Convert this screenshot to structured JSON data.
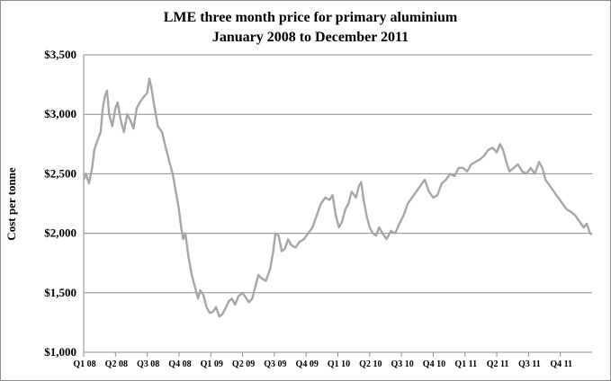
{
  "chart_data": {
    "type": "line",
    "title": "LME three month price for primary aluminium",
    "subtitle": "January 2008  to December 2011",
    "ylabel": "Cost per tonne",
    "xlabel": "",
    "ylim": [
      1000,
      3500
    ],
    "y_ticks": [
      {
        "value": 1000,
        "label": "$1,000"
      },
      {
        "value": 1500,
        "label": "$1,500"
      },
      {
        "value": 2000,
        "label": "$2,000"
      },
      {
        "value": 2500,
        "label": "$2,500"
      },
      {
        "value": 3000,
        "label": "$3,000"
      },
      {
        "value": 3500,
        "label": "$3,500"
      }
    ],
    "x_range": [
      0,
      48
    ],
    "x_ticks": [
      {
        "value": 0,
        "label": "Q1 08"
      },
      {
        "value": 3,
        "label": "Q2 08"
      },
      {
        "value": 6,
        "label": "Q3 08"
      },
      {
        "value": 9,
        "label": "Q4 08"
      },
      {
        "value": 12,
        "label": "Q1 09"
      },
      {
        "value": 15,
        "label": "Q2 09"
      },
      {
        "value": 18,
        "label": "Q3 09"
      },
      {
        "value": 21,
        "label": "Q4 09"
      },
      {
        "value": 24,
        "label": "Q1 10"
      },
      {
        "value": 27,
        "label": "Q2 10"
      },
      {
        "value": 30,
        "label": "Q3 10"
      },
      {
        "value": 33,
        "label": "Q4 10"
      },
      {
        "value": 36,
        "label": "Q1 11"
      },
      {
        "value": 39,
        "label": "Q2 11"
      },
      {
        "value": 42,
        "label": "Q3 11"
      },
      {
        "value": 45,
        "label": "Q4 11"
      }
    ],
    "grid": true,
    "line_color": "#a6a6a6",
    "series": [
      {
        "name": "LME three month price",
        "points": [
          [
            0.0,
            2450
          ],
          [
            0.2,
            2500
          ],
          [
            0.5,
            2420
          ],
          [
            0.8,
            2550
          ],
          [
            1.0,
            2700
          ],
          [
            1.3,
            2780
          ],
          [
            1.6,
            2850
          ],
          [
            1.8,
            3050
          ],
          [
            2.0,
            3150
          ],
          [
            2.2,
            3200
          ],
          [
            2.4,
            3000
          ],
          [
            2.7,
            2900
          ],
          [
            3.0,
            3050
          ],
          [
            3.2,
            3100
          ],
          [
            3.5,
            2950
          ],
          [
            3.8,
            2850
          ],
          [
            4.1,
            3000
          ],
          [
            4.4,
            2950
          ],
          [
            4.7,
            2880
          ],
          [
            5.0,
            3050
          ],
          [
            5.3,
            3100
          ],
          [
            5.7,
            3150
          ],
          [
            6.0,
            3180
          ],
          [
            6.2,
            3300
          ],
          [
            6.4,
            3220
          ],
          [
            6.7,
            3050
          ],
          [
            7.0,
            2900
          ],
          [
            7.4,
            2850
          ],
          [
            7.8,
            2700
          ],
          [
            8.1,
            2600
          ],
          [
            8.4,
            2500
          ],
          [
            8.7,
            2350
          ],
          [
            9.0,
            2200
          ],
          [
            9.2,
            2050
          ],
          [
            9.4,
            1950
          ],
          [
            9.6,
            2000
          ],
          [
            9.9,
            1800
          ],
          [
            10.2,
            1650
          ],
          [
            10.5,
            1550
          ],
          [
            10.8,
            1450
          ],
          [
            11.0,
            1520
          ],
          [
            11.3,
            1480
          ],
          [
            11.6,
            1380
          ],
          [
            11.9,
            1330
          ],
          [
            12.2,
            1340
          ],
          [
            12.5,
            1380
          ],
          [
            12.8,
            1300
          ],
          [
            13.1,
            1320
          ],
          [
            13.4,
            1370
          ],
          [
            13.7,
            1430
          ],
          [
            14.0,
            1450
          ],
          [
            14.3,
            1400
          ],
          [
            14.6,
            1470
          ],
          [
            15.0,
            1500
          ],
          [
            15.3,
            1460
          ],
          [
            15.6,
            1420
          ],
          [
            15.9,
            1450
          ],
          [
            16.2,
            1550
          ],
          [
            16.5,
            1650
          ],
          [
            16.8,
            1620
          ],
          [
            17.2,
            1600
          ],
          [
            17.6,
            1700
          ],
          [
            17.9,
            1850
          ],
          [
            18.1,
            2000
          ],
          [
            18.4,
            1980
          ],
          [
            18.7,
            1850
          ],
          [
            19.0,
            1870
          ],
          [
            19.3,
            1950
          ],
          [
            19.6,
            1900
          ],
          [
            20.0,
            1880
          ],
          [
            20.4,
            1930
          ],
          [
            20.8,
            1950
          ],
          [
            21.2,
            2000
          ],
          [
            21.6,
            2050
          ],
          [
            22.0,
            2150
          ],
          [
            22.4,
            2250
          ],
          [
            22.8,
            2300
          ],
          [
            23.2,
            2280
          ],
          [
            23.5,
            2320
          ],
          [
            23.8,
            2150
          ],
          [
            24.1,
            2050
          ],
          [
            24.4,
            2100
          ],
          [
            24.7,
            2200
          ],
          [
            25.0,
            2250
          ],
          [
            25.3,
            2350
          ],
          [
            25.7,
            2300
          ],
          [
            26.0,
            2400
          ],
          [
            26.2,
            2430
          ],
          [
            26.4,
            2300
          ],
          [
            26.7,
            2150
          ],
          [
            27.0,
            2050
          ],
          [
            27.3,
            2000
          ],
          [
            27.6,
            1980
          ],
          [
            27.9,
            2050
          ],
          [
            28.2,
            2000
          ],
          [
            28.6,
            1950
          ],
          [
            29.0,
            2020
          ],
          [
            29.4,
            2000
          ],
          [
            29.8,
            2080
          ],
          [
            30.2,
            2150
          ],
          [
            30.6,
            2250
          ],
          [
            31.0,
            2300
          ],
          [
            31.4,
            2350
          ],
          [
            31.8,
            2400
          ],
          [
            32.2,
            2450
          ],
          [
            32.6,
            2350
          ],
          [
            33.0,
            2300
          ],
          [
            33.4,
            2320
          ],
          [
            33.8,
            2420
          ],
          [
            34.2,
            2450
          ],
          [
            34.6,
            2500
          ],
          [
            35.0,
            2480
          ],
          [
            35.4,
            2550
          ],
          [
            35.8,
            2550
          ],
          [
            36.2,
            2520
          ],
          [
            36.6,
            2580
          ],
          [
            37.0,
            2600
          ],
          [
            37.4,
            2620
          ],
          [
            37.8,
            2650
          ],
          [
            38.2,
            2700
          ],
          [
            38.6,
            2720
          ],
          [
            39.0,
            2680
          ],
          [
            39.3,
            2750
          ],
          [
            39.6,
            2700
          ],
          [
            39.9,
            2600
          ],
          [
            40.2,
            2520
          ],
          [
            40.6,
            2550
          ],
          [
            41.0,
            2580
          ],
          [
            41.4,
            2520
          ],
          [
            41.8,
            2500
          ],
          [
            42.2,
            2550
          ],
          [
            42.6,
            2500
          ],
          [
            43.0,
            2600
          ],
          [
            43.3,
            2550
          ],
          [
            43.6,
            2450
          ],
          [
            44.0,
            2400
          ],
          [
            44.4,
            2350
          ],
          [
            44.8,
            2300
          ],
          [
            45.2,
            2250
          ],
          [
            45.6,
            2200
          ],
          [
            46.0,
            2180
          ],
          [
            46.4,
            2150
          ],
          [
            46.8,
            2100
          ],
          [
            47.2,
            2050
          ],
          [
            47.5,
            2080
          ],
          [
            47.8,
            2000
          ],
          [
            48.0,
            1990
          ]
        ]
      }
    ]
  }
}
